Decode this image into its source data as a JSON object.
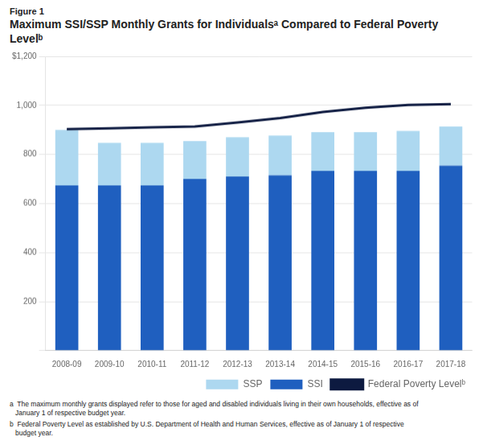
{
  "chart_data": {
    "type": "bar",
    "subtitle": "Figure 1",
    "title": "Maximum SSI/SSP Monthly Grants for Individualsᵃ Compared to Federal Poverty Levelᵇ",
    "annotations": [
      "a  The maximum monthly grants displayed refer to those for aged and disabled individuals living in their own households, effective as of\n   January 1 of respective budget year.",
      "b  Federal Poverty Level as established by U.S. Department of Health and Human Services, effective as of January 1 of respective\n   budget year."
    ],
    "categories": [
      "2008-09",
      "2009-10",
      "2010-11",
      "2011-12",
      "2012-13",
      "2013-14",
      "2014-15",
      "2015-16",
      "2016-17",
      "2017-18"
    ],
    "series": [
      {
        "name": "SSI",
        "color": "#1F5FBF",
        "values": [
          674.0,
          674.0,
          674.0,
          700.0,
          710.0,
          715.0,
          733.0,
          733.0,
          733.0,
          754.0
        ]
      },
      {
        "name": "SSP",
        "color": "#ADD8F0",
        "values": [
          226.0,
          173.0,
          173.0,
          155.0,
          160.0,
          162.0,
          158.0,
          158.0,
          163.0,
          160.0
        ]
      },
      {
        "name": "Federal Poverty Levelᵇ",
        "type": "line",
        "color": "#0D1A40",
        "values": [
          903.0,
          906.7,
          910.4,
          914.0,
          930.0,
          948.0,
          973.0,
          990.0,
          1001.5,
          1005.0
        ]
      }
    ],
    "ylim": [
      0,
      1200
    ],
    "yticks": [
      {
        "value": 0,
        "label": null
      },
      200,
      400,
      600,
      800,
      {
        "value": 1000,
        "label": "1,000"
      },
      {
        "value": 1200,
        "label": "$1,200"
      }
    ],
    "grid": true,
    "stacked": true,
    "legend": "bottom"
  }
}
